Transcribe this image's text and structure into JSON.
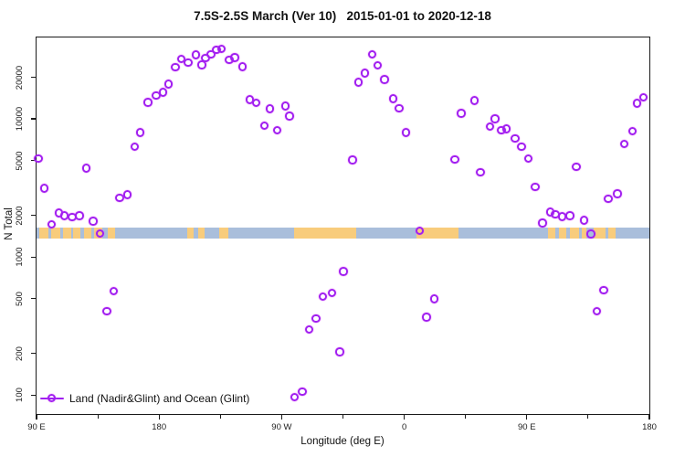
{
  "title": "7.5S-2.5S March (Ver 10)   2015-01-01 to 2020-12-18",
  "chart_data": {
    "type": "scatter",
    "title": "7.5S-2.5S March (Ver 10)   2015-01-01 to 2020-12-18",
    "xlabel": "Longitude (deg E)",
    "ylabel": "N Total",
    "x_scale": "linear",
    "y_scale": "log",
    "xlim": [
      90,
      540
    ],
    "ylim": [
      73,
      38800
    ],
    "grid": false,
    "x_major_ticks": [
      {
        "pos": 90,
        "label": "90 E"
      },
      {
        "pos": 180,
        "label": "180"
      },
      {
        "pos": 270,
        "label": "90 W"
      },
      {
        "pos": 360,
        "label": "0"
      },
      {
        "pos": 450,
        "label": "90 E"
      },
      {
        "pos": 540,
        "label": "180"
      }
    ],
    "x_minor_ticks": [
      135,
      225,
      315,
      405,
      495
    ],
    "y_ticks": [
      100,
      200,
      500,
      1000,
      2000,
      5000,
      10000,
      20000
    ],
    "legend": {
      "position": "bottom-left",
      "entries": [
        {
          "label": "Land (Nadir&Glint) and Ocean (Glint)",
          "marker": "open-circle-on-line",
          "color": "#a020f0"
        }
      ]
    },
    "map_band": {
      "description": "horizontal map strip: ocean blue with orange land segments",
      "n_low": 1350,
      "n_high": 1640,
      "ocean_color": "#a9bedb",
      "land_color": "#f8cc7c",
      "land_segments_deg": [
        [
          92.0,
          98.7
        ],
        [
          100.7,
          107.4
        ],
        [
          109.4,
          115.4
        ],
        [
          116.8,
          122.2
        ],
        [
          124.9,
          130.2
        ],
        [
          132.2,
          138.3
        ],
        [
          142.3,
          147.7
        ],
        [
          200.7,
          205.4
        ],
        [
          208.7,
          213.4
        ],
        [
          224.1,
          230.8
        ],
        [
          279.1,
          324.7
        ],
        [
          369.0,
          399.8
        ],
        [
          465.6,
          470.9
        ],
        [
          473.6,
          479.0
        ],
        [
          481.6,
          488.3
        ],
        [
          490.3,
          493.7
        ],
        [
          499.0,
          507.8
        ],
        [
          509.8,
          515.2
        ]
      ]
    },
    "point_format": [
      "x_deg_continuous_from_90E",
      "n_total"
    ],
    "series": [
      {
        "name": "Land (Nadir&Glint) and Ocean (Glint)",
        "marker": "open-circle",
        "color": "#a020f0",
        "points": [
          [
            91.8,
            5100
          ],
          [
            96.2,
            3120
          ],
          [
            101.6,
            1710
          ],
          [
            106.8,
            2060
          ],
          [
            110.8,
            1970
          ],
          [
            116.4,
            1930
          ],
          [
            122.0,
            1970
          ],
          [
            126.9,
            4370
          ],
          [
            132.0,
            1800
          ],
          [
            137.0,
            1460
          ],
          [
            142.1,
            400
          ],
          [
            147.0,
            560
          ],
          [
            151.5,
            2660
          ],
          [
            157.1,
            2790
          ],
          [
            162.6,
            6250
          ],
          [
            166.6,
            7900
          ],
          [
            172.3,
            13000
          ],
          [
            178.3,
            14600
          ],
          [
            183.2,
            15400
          ],
          [
            187.2,
            17700
          ],
          [
            192.4,
            23400
          ],
          [
            196.6,
            26900
          ],
          [
            201.8,
            25200
          ],
          [
            207.4,
            28800
          ],
          [
            211.8,
            24300
          ],
          [
            214.5,
            27200
          ],
          [
            218.6,
            29100
          ],
          [
            222.6,
            31400
          ],
          [
            226.3,
            31900
          ],
          [
            232.0,
            26500
          ],
          [
            236.0,
            27400
          ],
          [
            241.6,
            23700
          ],
          [
            247.1,
            13600
          ],
          [
            251.6,
            12900
          ],
          [
            257.7,
            8830
          ],
          [
            261.7,
            11700
          ],
          [
            267.2,
            8180
          ],
          [
            273.3,
            12300
          ],
          [
            276.2,
            10400
          ],
          [
            280.0,
            96
          ],
          [
            285.6,
            105
          ],
          [
            290.5,
            297
          ],
          [
            295.7,
            356
          ],
          [
            300.8,
            514
          ],
          [
            307.5,
            543
          ],
          [
            313.0,
            204
          ],
          [
            315.7,
            780
          ],
          [
            322.5,
            5000
          ],
          [
            326.9,
            18200
          ],
          [
            331.4,
            21200
          ],
          [
            337.0,
            29000
          ],
          [
            341.0,
            24100
          ],
          [
            346.0,
            19100
          ],
          [
            352.2,
            13900
          ],
          [
            356.7,
            11800
          ],
          [
            361.6,
            7900
          ],
          [
            371.7,
            1530
          ],
          [
            376.8,
            364
          ],
          [
            382.4,
            493
          ],
          [
            397.4,
            5050
          ],
          [
            402.3,
            10900
          ],
          [
            411.9,
            13400
          ],
          [
            416.4,
            4060
          ],
          [
            423.5,
            8730
          ],
          [
            426.9,
            9900
          ],
          [
            431.6,
            8170
          ],
          [
            435.4,
            8370
          ],
          [
            441.7,
            7140
          ],
          [
            446.6,
            6250
          ],
          [
            451.5,
            5100
          ],
          [
            456.7,
            3190
          ],
          [
            461.8,
            1740
          ],
          [
            467.8,
            2100
          ],
          [
            471.2,
            2010
          ],
          [
            476.3,
            1940
          ],
          [
            481.9,
            1970
          ],
          [
            486.9,
            4450
          ],
          [
            492.4,
            1830
          ],
          [
            497.5,
            1450
          ],
          [
            501.8,
            400
          ],
          [
            506.9,
            570
          ],
          [
            510.3,
            2610
          ],
          [
            517.0,
            2850
          ],
          [
            522.0,
            6500
          ],
          [
            528.0,
            8050
          ],
          [
            531.5,
            12800
          ],
          [
            536.0,
            14200
          ]
        ]
      }
    ]
  },
  "colors": {
    "marker": "#a020f0",
    "ocean_band": "#a9bedb",
    "land_band": "#f8cc7c",
    "axis": "#1a1a1a"
  }
}
